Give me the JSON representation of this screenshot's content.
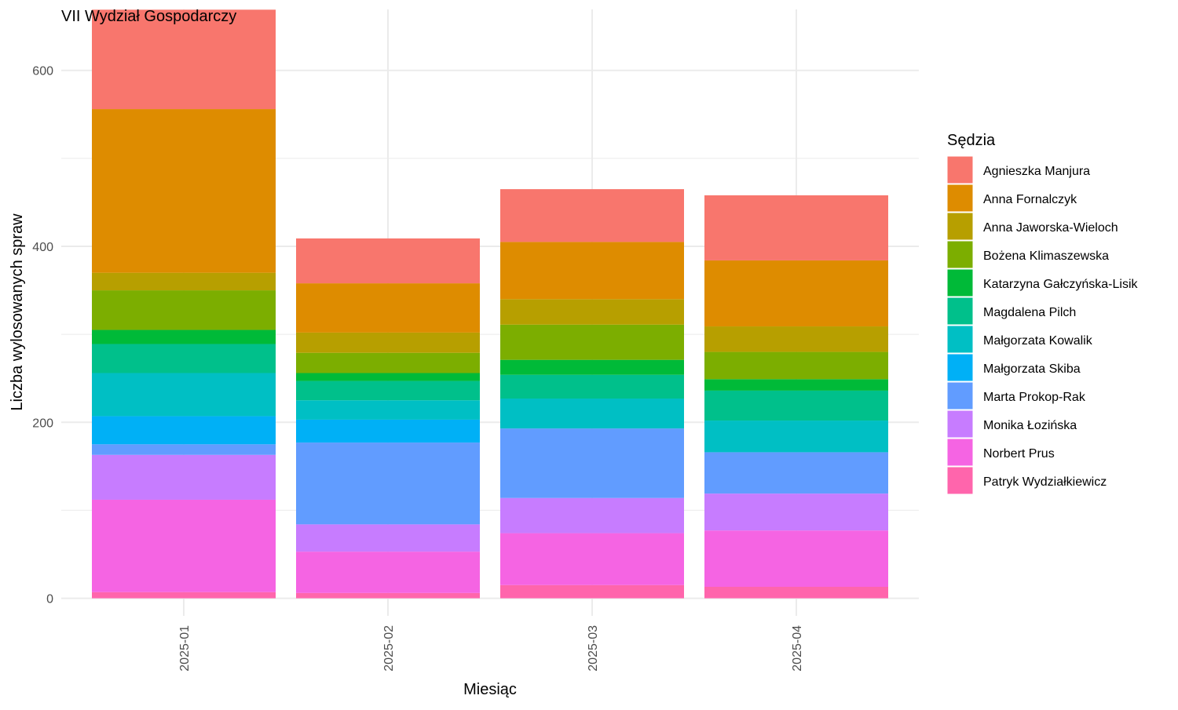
{
  "chart_data": {
    "type": "bar",
    "stacked": true,
    "title": "VII Wydział Gospodarczy",
    "xlabel": "Miesiąc",
    "ylabel": "Liczba wylosowanych spraw",
    "ylim": [
      -20,
      680
    ],
    "yticks": [
      0,
      200,
      400,
      600
    ],
    "grid": true,
    "legend_title": "Sędzia",
    "legend_position": "right",
    "categories": [
      "2025-01",
      "2025-02",
      "2025-03",
      "2025-04"
    ],
    "series": [
      {
        "name": "Patryk Wydziałkiewicz",
        "color": "#FF65AC",
        "values": [
          7,
          6,
          15,
          13
        ]
      },
      {
        "name": "Norbert Prus",
        "color": "#F564E3",
        "values": [
          105,
          47,
          59,
          64
        ]
      },
      {
        "name": "Monika Łozińska",
        "color": "#C77CFF",
        "values": [
          51,
          31,
          40,
          42
        ]
      },
      {
        "name": "Marta Prokop-Rak",
        "color": "#619CFF",
        "values": [
          12,
          93,
          79,
          47
        ]
      },
      {
        "name": "Małgorzata Skiba",
        "color": "#00B0F6",
        "values": [
          32,
          26,
          0,
          0
        ]
      },
      {
        "name": "Małgorzata Kowalik",
        "color": "#00BFC4",
        "values": [
          49,
          22,
          34,
          36
        ]
      },
      {
        "name": "Magdalena Pilch",
        "color": "#00C08B",
        "values": [
          33,
          22,
          27,
          34
        ]
      },
      {
        "name": "Katarzyna Gałczyńska-Lisik",
        "color": "#00BA38",
        "values": [
          16,
          9,
          17,
          13
        ]
      },
      {
        "name": "Bożena Klimaszewska",
        "color": "#7CAE00",
        "values": [
          45,
          23,
          40,
          31
        ]
      },
      {
        "name": "Anna Jaworska-Wieloch",
        "color": "#B79F00",
        "values": [
          20,
          23,
          29,
          29
        ]
      },
      {
        "name": "Anna Fornalczyk",
        "color": "#DE8C00",
        "values": [
          186,
          56,
          65,
          75
        ]
      },
      {
        "name": "Agnieszka Manjura",
        "color": "#F8766D",
        "values": [
          113,
          51,
          60,
          74
        ]
      }
    ],
    "legend_order": [
      "Agnieszka Manjura",
      "Anna Fornalczyk",
      "Anna Jaworska-Wieloch",
      "Bożena Klimaszewska",
      "Katarzyna Gałczyńska-Lisik",
      "Magdalena Pilch",
      "Małgorzata Kowalik",
      "Małgorzata Skiba",
      "Marta Prokop-Rak",
      "Monika Łozińska",
      "Norbert Prus",
      "Patryk Wydziałkiewicz"
    ]
  }
}
